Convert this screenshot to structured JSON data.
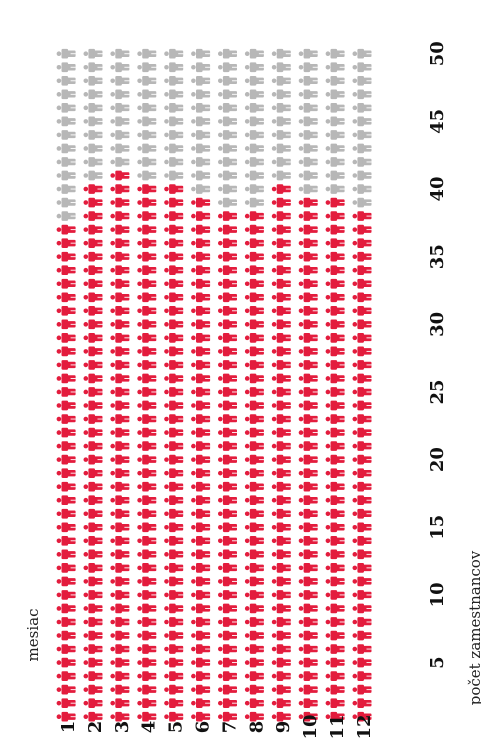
{
  "chart_data": {
    "type": "pictogram",
    "title": "",
    "row_axis_label": "mesiac",
    "value_axis_label": "počet zamestnancov",
    "categories": [
      "1",
      "2",
      "3",
      "4",
      "5",
      "6",
      "7",
      "8",
      "9",
      "10",
      "11",
      "12"
    ],
    "values": [
      37,
      40,
      41,
      40,
      40,
      39,
      38,
      38,
      40,
      39,
      39,
      38
    ],
    "max_icons": 50,
    "ticks": [
      "5",
      "10",
      "15",
      "20",
      "25",
      "30",
      "35",
      "40",
      "45",
      "50"
    ],
    "colors": {
      "filled": "#e31c3d",
      "empty": "#b7b7b7"
    },
    "icon": "person-icon"
  }
}
